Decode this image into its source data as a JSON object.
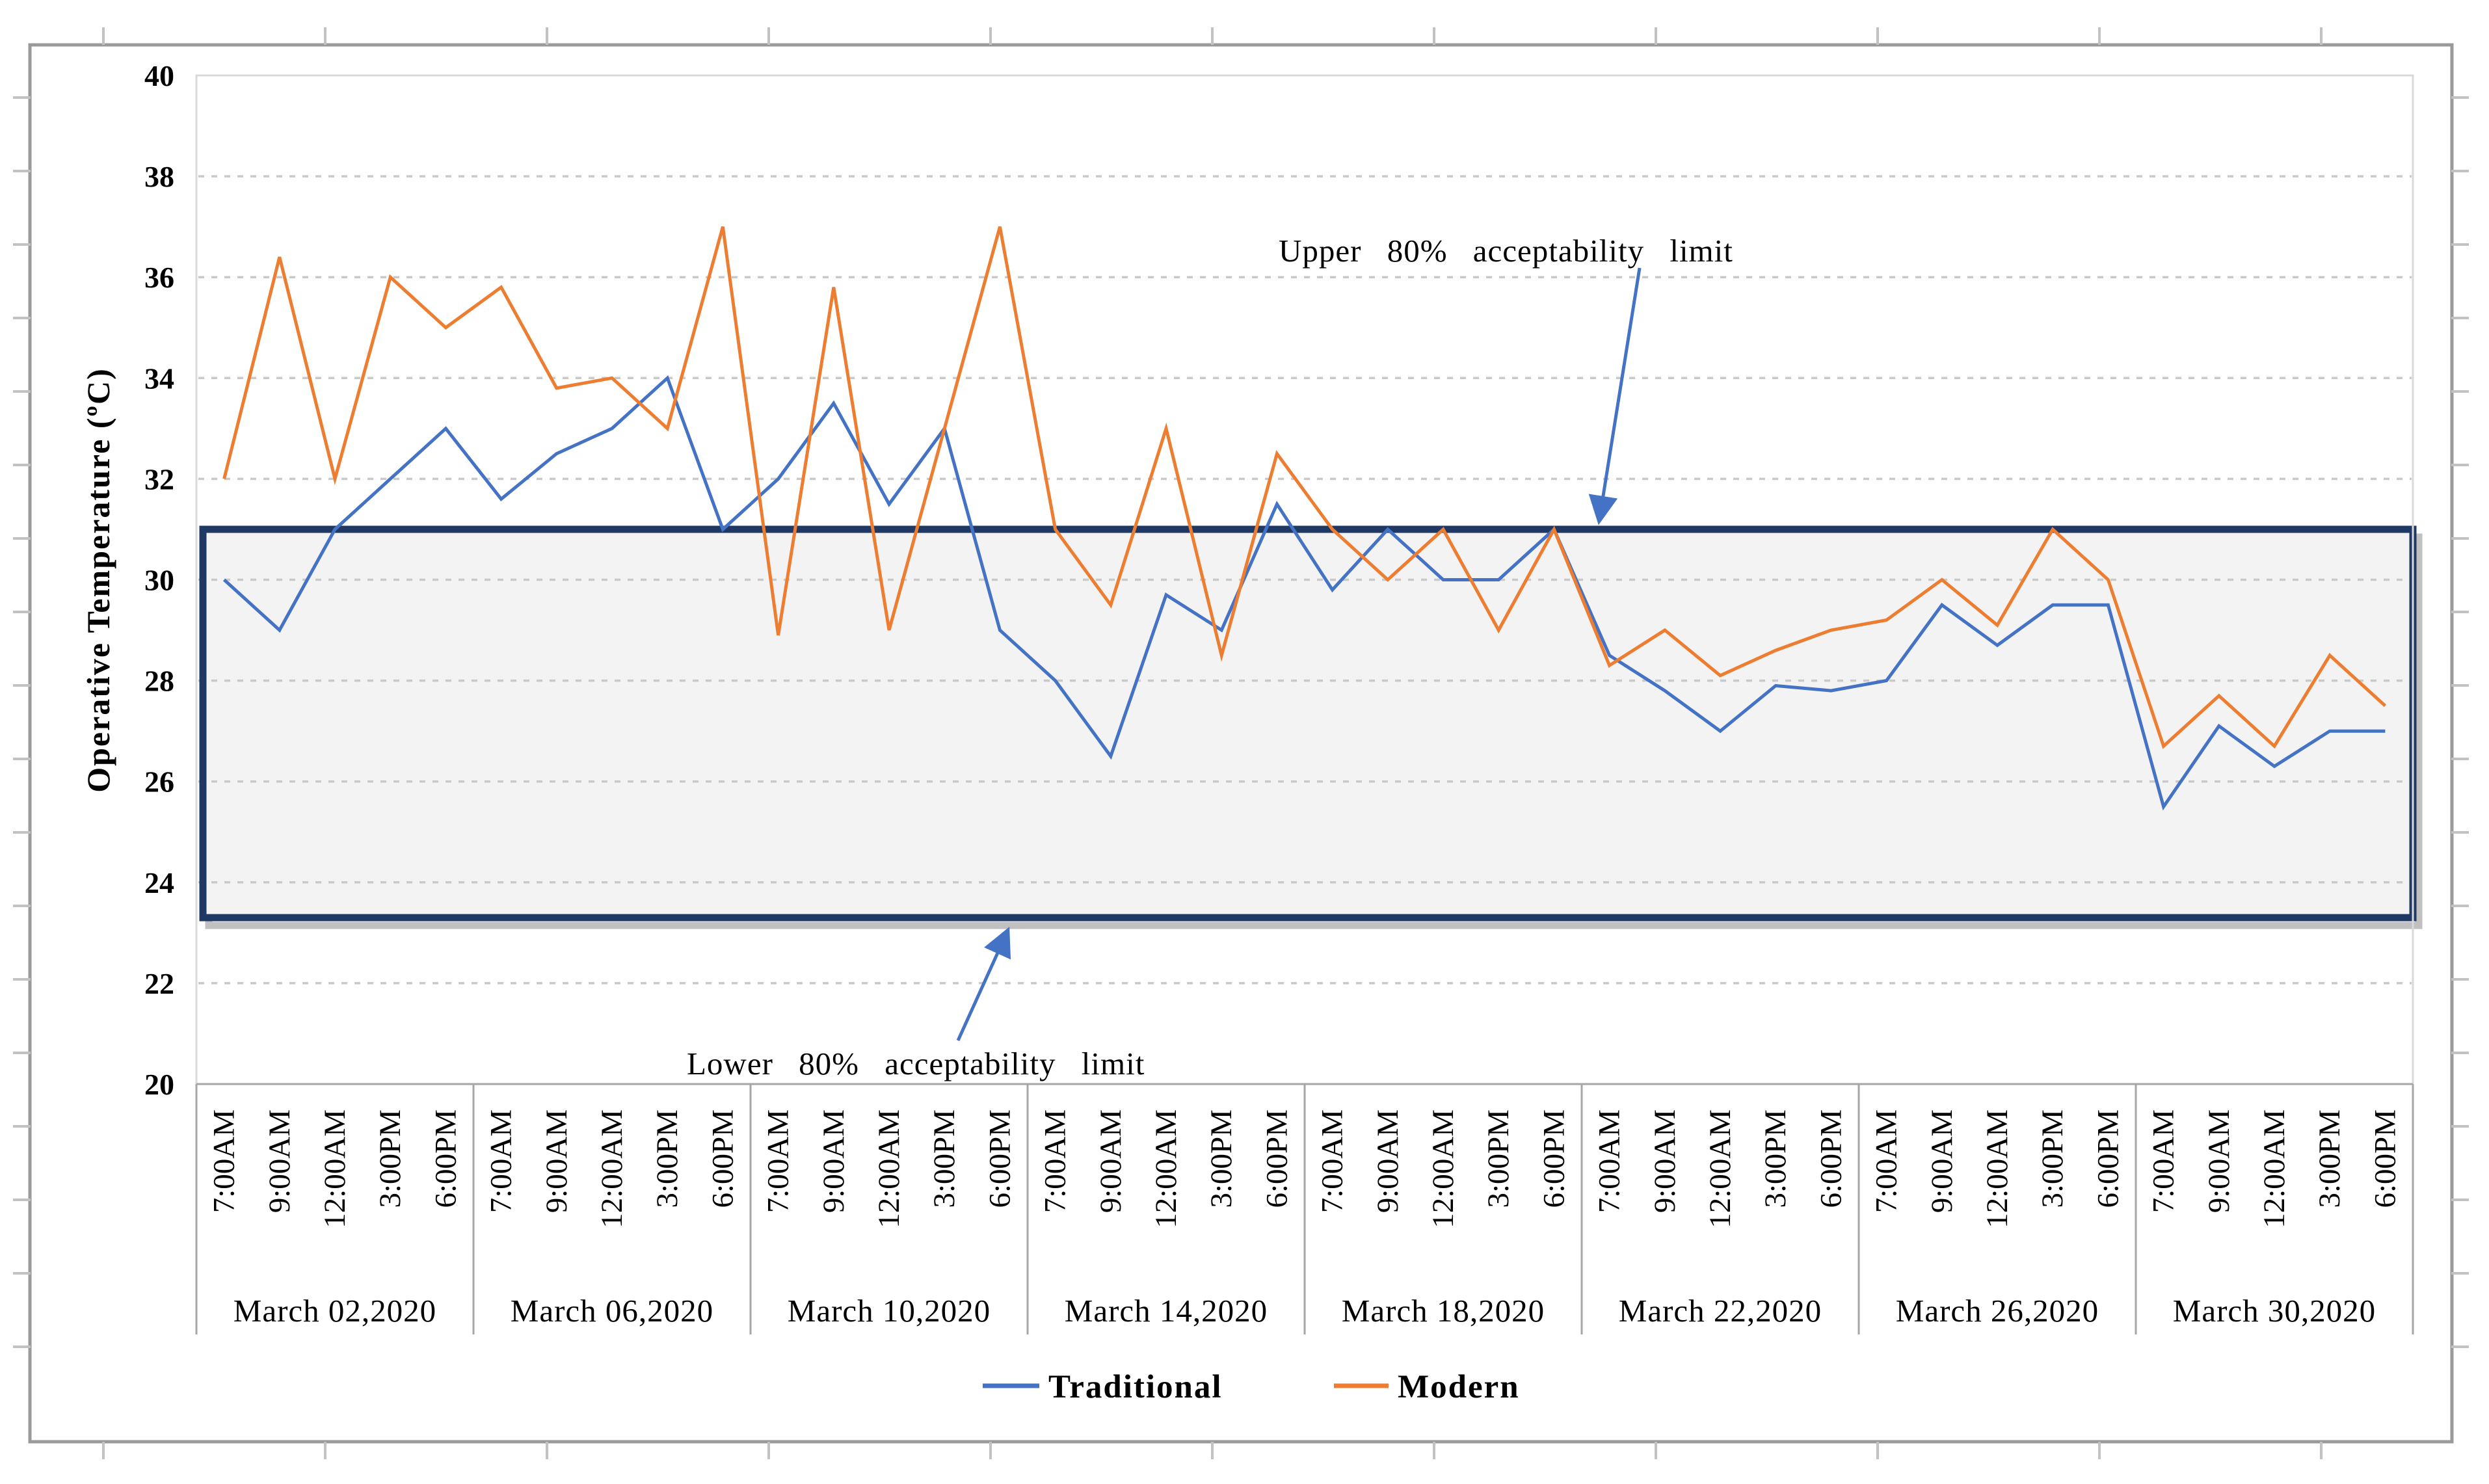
{
  "chart_data": {
    "type": "line",
    "title": "",
    "ylabel": "Operative Temperature (ºC)",
    "xlabel": "",
    "grid": true,
    "legend_position": "bottom-center",
    "y_axis": {
      "min": 20,
      "max": 40,
      "step": 2,
      "tick_labels": [
        "20",
        "22",
        "24",
        "26",
        "28",
        "30",
        "32",
        "34",
        "36",
        "38",
        "40"
      ]
    },
    "x_axis": {
      "time_ticks": [
        "7:00AM",
        "9:00AM",
        "12:00AM",
        "3:00PM",
        "6:00PM"
      ],
      "date_groups": [
        "March 02,2020",
        "March 06,2020",
        "March 10,2020",
        "March 14,2020",
        "March 18,2020",
        "March 22,2020",
        "March 26,2020",
        "March 30,2020"
      ]
    },
    "band": {
      "name": "80% acceptability band",
      "upper_limit": 31.0,
      "lower_limit": 23.3,
      "fill_color": "#F3F3F3",
      "border_color": "#1F3864",
      "shadow_color": "#ABABAB"
    },
    "series": [
      {
        "name": "Traditional",
        "color": "#4472C4",
        "values": [
          30,
          29,
          31,
          32,
          33,
          31.6,
          32.5,
          33,
          34,
          31,
          32,
          33.5,
          31.5,
          33,
          29,
          28,
          26.5,
          29.7,
          29,
          31.5,
          29.8,
          31,
          30,
          30,
          31,
          28.5,
          27.8,
          27,
          27.9,
          27.8,
          28,
          29.5,
          28.7,
          29.5,
          29.5,
          25.5,
          27.1,
          26.3,
          27,
          27
        ]
      },
      {
        "name": "Modern",
        "color": "#ED7D31",
        "values": [
          32,
          36.4,
          32,
          36,
          35,
          35.8,
          33.8,
          34,
          33,
          37,
          28.9,
          35.8,
          29,
          33,
          37,
          31,
          29.5,
          33,
          28.5,
          32.5,
          31,
          30,
          31,
          29,
          31,
          28.3,
          29,
          28.1,
          28.6,
          29,
          29.2,
          30,
          29.1,
          31,
          30,
          26.7,
          27.7,
          26.7,
          28.5,
          27.5
        ]
      }
    ],
    "annotations": [
      {
        "text": "Upper 80% acceptability limit",
        "points_to_value": 31.0
      },
      {
        "text": "Lower 80% acceptability limit",
        "points_to_value": 23.3
      }
    ],
    "gridline_color": "#C9C9C9",
    "axis_color": "#A6A6A6",
    "arrow_color": "#4472C4"
  }
}
